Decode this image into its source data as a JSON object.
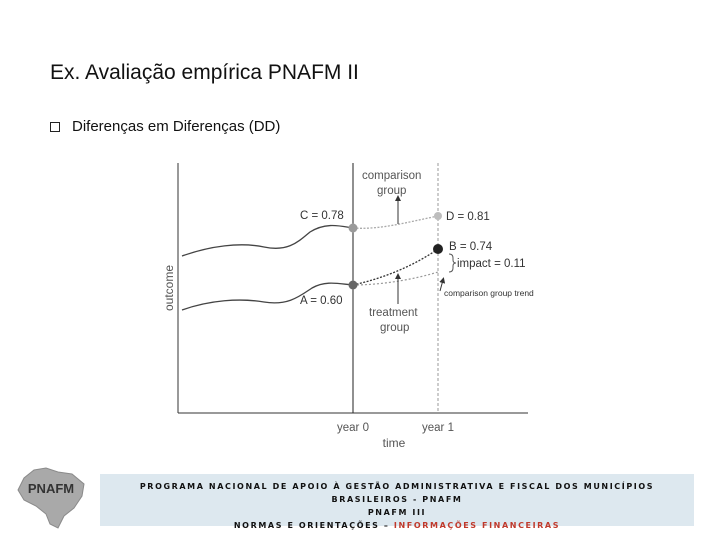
{
  "slide": {
    "title": "Ex. Avaliação empírica PNAFM II",
    "bullet": "Diferenças em Diferenças (DD)"
  },
  "chart_data": {
    "type": "line",
    "xlabel": "time",
    "ylabel": "outcome",
    "x_ticks": [
      "year 0",
      "year 1"
    ],
    "points": [
      {
        "label": "C = 0.78",
        "x": "year 0",
        "y": 0.78,
        "color": "#9a9a9a"
      },
      {
        "label": "D = 0.81",
        "x": "year 1",
        "y": 0.81,
        "color": "#bdbdbd"
      },
      {
        "label": "A = 0.60",
        "x": "year 0",
        "y": 0.6,
        "color": "#666666"
      },
      {
        "label": "B = 0.74",
        "x": "year 1",
        "y": 0.74,
        "color": "#222222"
      }
    ],
    "annotations": {
      "comparison_group": [
        "comparison",
        "group"
      ],
      "treatment_group": [
        "treatment",
        "group"
      ],
      "impact": "impact = 0.11",
      "trend": "comparison group trend"
    }
  },
  "footer": {
    "line1": "PROGRAMA NACIONAL DE APOIO À GESTÃO ADMINISTRATIVA E FISCAL DOS MUNICÍPIOS BRASILEIROS - PNAFM",
    "line2": "PNAFM III",
    "line3_prefix": "NORMAS E ORIENTAÇÕES –",
    "line3_highlight": "INFORMAÇÕES FINANCEIRAS"
  },
  "logo": {
    "text": "PNAFM",
    "colors": {
      "map": "#a9a9a9",
      "text": "#333333"
    }
  }
}
